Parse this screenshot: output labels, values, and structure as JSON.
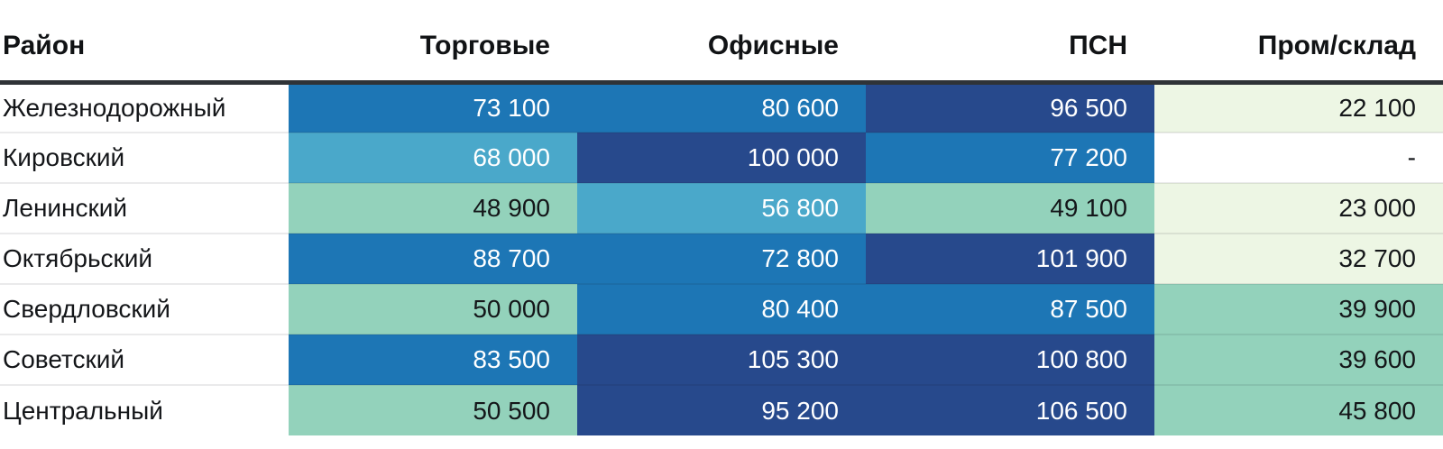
{
  "table": {
    "header": {
      "district": "Район",
      "columns": [
        "Торговые",
        "Офисные",
        "ПСН",
        "Пром/склад"
      ]
    },
    "rows": [
      {
        "district": "Железнодорожный",
        "cells": [
          {
            "value": "73 100",
            "bg": "blue"
          },
          {
            "value": "80 600",
            "bg": "blue"
          },
          {
            "value": "96 500",
            "bg": "navy"
          },
          {
            "value": "22 100",
            "bg": "lightgreen"
          }
        ]
      },
      {
        "district": "Кировский",
        "cells": [
          {
            "value": "68 000",
            "bg": "teal"
          },
          {
            "value": "100 000",
            "bg": "navy"
          },
          {
            "value": "77 200",
            "bg": "blue"
          },
          {
            "value": "-",
            "bg": "white"
          }
        ]
      },
      {
        "district": "Ленинский",
        "cells": [
          {
            "value": "48 900",
            "bg": "green"
          },
          {
            "value": "56 800",
            "bg": "teal"
          },
          {
            "value": "49 100",
            "bg": "green"
          },
          {
            "value": "23 000",
            "bg": "lightgreen"
          }
        ]
      },
      {
        "district": "Октябрьский",
        "cells": [
          {
            "value": "88 700",
            "bg": "blue"
          },
          {
            "value": "72 800",
            "bg": "blue"
          },
          {
            "value": "101 900",
            "bg": "navy"
          },
          {
            "value": "32 700",
            "bg": "lightgreen"
          }
        ]
      },
      {
        "district": "Свердловский",
        "cells": [
          {
            "value": "50 000",
            "bg": "green"
          },
          {
            "value": "80 400",
            "bg": "blue"
          },
          {
            "value": "87 500",
            "bg": "blue"
          },
          {
            "value": "39 900",
            "bg": "green"
          }
        ]
      },
      {
        "district": "Советский",
        "cells": [
          {
            "value": "83 500",
            "bg": "blue"
          },
          {
            "value": "105 300",
            "bg": "navy"
          },
          {
            "value": "100 800",
            "bg": "navy"
          },
          {
            "value": "39 600",
            "bg": "green"
          }
        ]
      },
      {
        "district": "Центральный",
        "cells": [
          {
            "value": "50 500",
            "bg": "green"
          },
          {
            "value": "95 200",
            "bg": "navy"
          },
          {
            "value": "106 500",
            "bg": "navy"
          },
          {
            "value": "45 800",
            "bg": "green"
          }
        ]
      }
    ]
  },
  "palette": {
    "navy": "#27498c",
    "blue": "#1d76b5",
    "teal": "#4aa8ca",
    "green": "#93d2bb",
    "lightgreen": "#edf6e4",
    "white": "#ffffff",
    "header_rule": "#2f3337",
    "row_separator": "#e9eaec",
    "text_dark": "#141619",
    "text_light": "#ffffff"
  },
  "chart_data": {
    "type": "heatmap",
    "title": "",
    "row_header": "Район",
    "columns": [
      "Торговые",
      "Офисные",
      "ПСН",
      "Пром/склад"
    ],
    "rows": [
      "Железнодорожный",
      "Кировский",
      "Ленинский",
      "Октябрьский",
      "Свердловский",
      "Советский",
      "Центральный"
    ],
    "values": [
      [
        73100,
        80600,
        96500,
        22100
      ],
      [
        68000,
        100000,
        77200,
        null
      ],
      [
        48900,
        56800,
        49100,
        23000
      ],
      [
        88700,
        72800,
        101900,
        32700
      ],
      [
        50000,
        80400,
        87500,
        39900
      ],
      [
        83500,
        105300,
        100800,
        39600
      ],
      [
        50500,
        95200,
        106500,
        45800
      ]
    ],
    "missing_value_marker": "-",
    "value_format": "space-separated thousands",
    "legend": "none",
    "color_scale": "green (low) → teal → blue → navy (high); empty cell = white"
  }
}
